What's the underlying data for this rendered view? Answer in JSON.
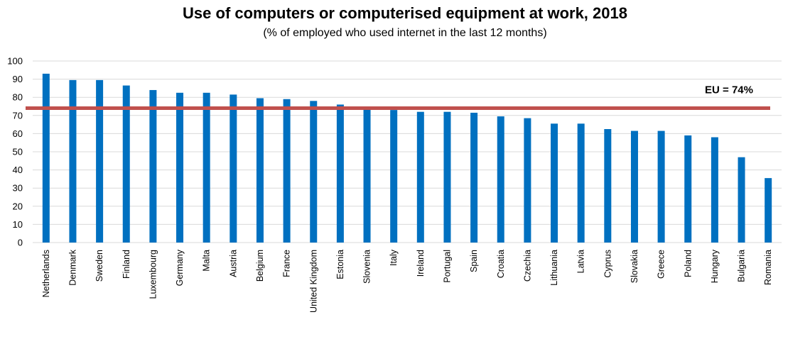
{
  "chart_data": {
    "type": "bar",
    "title": "Use of computers or computerised equipment at work, 2018",
    "subtitle": "(% of employed who used internet in the last 12 months)",
    "xlabel": "",
    "ylabel": "",
    "ylim": [
      0,
      100
    ],
    "yticks": [
      0,
      10,
      20,
      30,
      40,
      50,
      60,
      70,
      80,
      90,
      100
    ],
    "grid": true,
    "categories": [
      "Netherlands",
      "Denmark",
      "Sweden",
      "Finland",
      "Luxembourg",
      "Germany",
      "Malta",
      "Austria",
      "Belgium",
      "France",
      "United Kingdom",
      "Estonia",
      "Slovenia",
      "Italy",
      "Ireland",
      "Portugal",
      "Spain",
      "Croatia",
      "Czechia",
      "Lithuania",
      "Latvia",
      "Cyprus",
      "Slovakia",
      "Greece",
      "Poland",
      "Hungary",
      "Bulgaria",
      "Romania"
    ],
    "values": [
      93,
      89.5,
      89.5,
      86.5,
      84,
      82.5,
      82.5,
      81.5,
      79.5,
      79,
      78,
      76,
      74,
      73,
      72,
      72,
      71.5,
      69.5,
      68.5,
      65.5,
      65.5,
      62.5,
      61.5,
      61.5,
      59,
      58,
      47,
      35.5
    ],
    "bar_color": "#0070C0",
    "reference_line": {
      "value": 74,
      "label": "EU = 74%",
      "color": "#C0504D"
    }
  }
}
